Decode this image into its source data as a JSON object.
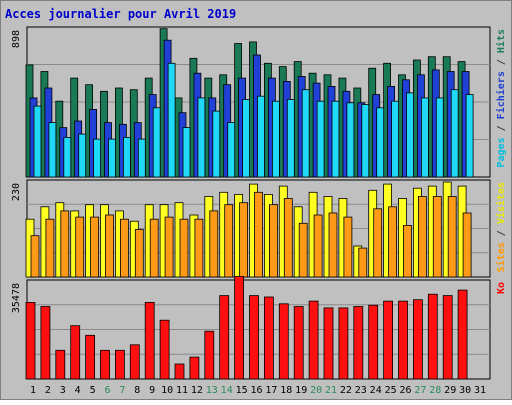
{
  "chart_data": {
    "type": "bar",
    "title": "Acces journalier pour Avril 2019",
    "days": [
      "1",
      "2",
      "3",
      "4",
      "5",
      "6",
      "7",
      "8",
      "9",
      "10",
      "11",
      "12",
      "13",
      "14",
      "15",
      "16",
      "17",
      "18",
      "19",
      "20",
      "21",
      "22",
      "23",
      "24",
      "25",
      "26",
      "27",
      "28",
      "29",
      "30",
      "31"
    ],
    "weekend_days": [
      "6",
      "7",
      "13",
      "14",
      "20",
      "21",
      "27",
      "28"
    ],
    "panels": [
      {
        "id": "hits_files_pages",
        "ytick": "898",
        "ymax": 898,
        "axis_label_parts": [
          {
            "text": "Pages",
            "color": "#00c0e0"
          },
          {
            "text": " / ",
            "color": "#404040"
          },
          {
            "text": "Fichiers",
            "color": "#2040d0"
          },
          {
            "text": " / ",
            "color": "#404040"
          },
          {
            "text": "Hits",
            "color": "#208060"
          }
        ],
        "series": [
          {
            "key": "hits",
            "color": "#1a7a55",
            "values": [
              680,
              640,
              460,
              600,
              560,
              520,
              540,
              530,
              600,
              900,
              480,
              720,
              600,
              620,
              810,
              820,
              690,
              670,
              700,
              630,
              620,
              600,
              540,
              660,
              690,
              620,
              710,
              730,
              730,
              700
            ]
          },
          {
            "key": "files",
            "color": "#2040d8",
            "values": [
              480,
              540,
              300,
              340,
              410,
              330,
              320,
              330,
              500,
              830,
              390,
              630,
              480,
              560,
              600,
              740,
              600,
              580,
              610,
              570,
              550,
              520,
              450,
              500,
              550,
              590,
              620,
              650,
              640,
              640
            ]
          },
          {
            "key": "pages",
            "color": "#20d8f8",
            "values": [
              430,
              330,
              240,
              260,
              230,
              230,
              240,
              230,
              420,
              690,
              300,
              480,
              400,
              330,
              470,
              490,
              460,
              470,
              530,
              460,
              460,
              450,
              440,
              420,
              460,
              510,
              480,
              480,
              530,
              500
            ]
          }
        ]
      },
      {
        "id": "visits_sites",
        "ytick": "230",
        "ymax": 230,
        "axis_label_parts": [
          {
            "text": "Sites",
            "color": "#ff9900"
          },
          {
            "text": " / ",
            "color": "#404040"
          },
          {
            "text": "Visites",
            "color": "#e8e800"
          }
        ],
        "series": [
          {
            "key": "visits",
            "color": "#ffff22",
            "values": [
              140,
              170,
              180,
              160,
              175,
              175,
              160,
              135,
              175,
              175,
              180,
              150,
              195,
              205,
              200,
              225,
              200,
              220,
              170,
              205,
              195,
              190,
              75,
              210,
              225,
              190,
              215,
              220,
              230,
              220
            ]
          },
          {
            "key": "sites",
            "color": "#ff9a18",
            "values": [
              100,
              140,
              160,
              145,
              145,
              150,
              140,
              115,
              140,
              145,
              140,
              140,
              160,
              175,
              180,
              205,
              175,
              190,
              130,
              150,
              155,
              145,
              70,
              165,
              170,
              125,
              195,
              195,
              195,
              155
            ]
          }
        ]
      },
      {
        "id": "kb",
        "ytick": "35478",
        "ymax": 35478,
        "axis_label_parts": [
          {
            "text": "Ko",
            "color": "#ff0000"
          }
        ],
        "series": [
          {
            "key": "kb",
            "color": "#ff1010",
            "values": [
              28000,
              26500,
              10500,
              19500,
              16000,
              10500,
              10500,
              12500,
              28000,
              21500,
              5500,
              8000,
              17500,
              30500,
              37500,
              30500,
              30000,
              27500,
              26500,
              28500,
              26000,
              26000,
              26500,
              27000,
              28500,
              28500,
              29000,
              31000,
              30500,
              32500
            ]
          }
        ]
      }
    ]
  }
}
